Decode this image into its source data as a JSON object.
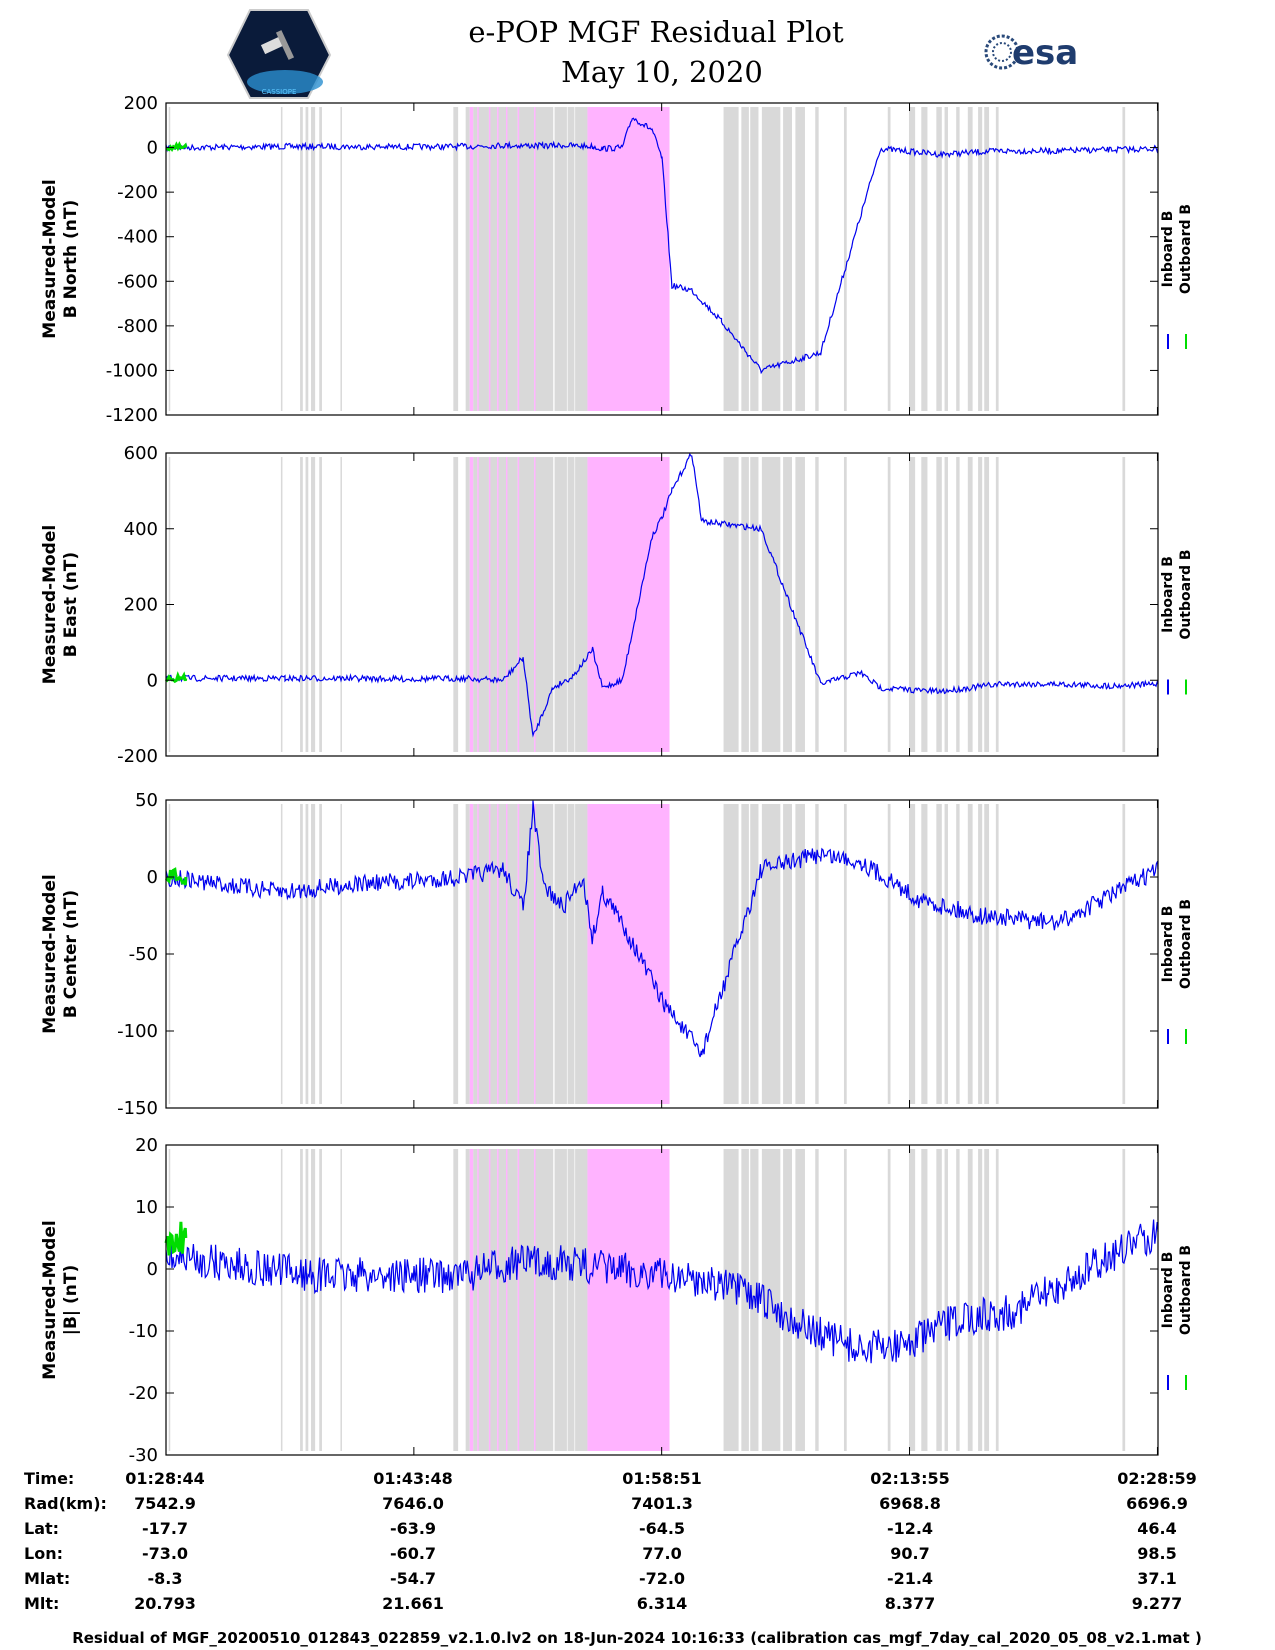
{
  "title": "e-POP MGF Residual Plot",
  "subtitle": "May 10, 2020",
  "logo_right_text": "esa",
  "logo_left_text": "CASSIOPE",
  "colors": {
    "inboard": "#0000ee",
    "outboard": "#00dd00",
    "gray_band": "#d9d9d9",
    "pink_band": "#ffb3ff"
  },
  "chart_data": [
    {
      "type": "line",
      "ylabel_line1": "Measured-Model",
      "ylabel_line2": "B North (nT)",
      "ylim": [
        -1200,
        200
      ],
      "yticks": [
        200,
        0,
        -200,
        -400,
        -600,
        -800,
        -1000,
        -1200
      ],
      "legend": [
        "Inboard B",
        "Outboard B"
      ],
      "series": [
        {
          "name": "Inboard B",
          "color": "#0000ee",
          "x": [
            0,
            6,
            12,
            18,
            24,
            30,
            34,
            38,
            40,
            43,
            44,
            46,
            47,
            49,
            50,
            51,
            53,
            56,
            60,
            66,
            72,
            78,
            84,
            90,
            95,
            100
          ],
          "values": [
            0,
            2,
            5,
            4,
            3,
            5,
            10,
            8,
            10,
            5,
            -5,
            0,
            135,
            80,
            -50,
            -620,
            -640,
            -780,
            -1000,
            -920,
            -5,
            -30,
            -15,
            -15,
            -10,
            -5
          ]
        },
        {
          "name": "Outboard B",
          "color": "#00dd00",
          "x": [
            0,
            2
          ],
          "values": [
            0,
            0
          ]
        }
      ]
    },
    {
      "type": "line",
      "ylabel_line1": "Measured-Model",
      "ylabel_line2": "B East (nT)",
      "ylim": [
        -200,
        600
      ],
      "yticks": [
        600,
        400,
        200,
        0,
        -200
      ],
      "legend": [
        "Inboard B",
        "Outboard B"
      ],
      "series": [
        {
          "name": "Inboard B",
          "color": "#0000ee",
          "x": [
            0,
            6,
            12,
            18,
            24,
            30,
            34,
            36,
            37,
            39,
            41,
            43,
            44,
            45,
            46,
            49,
            50,
            51,
            53,
            54,
            60,
            66,
            70,
            72,
            78,
            84,
            90,
            95,
            100
          ],
          "values": [
            5,
            5,
            5,
            5,
            3,
            5,
            0,
            60,
            -150,
            -20,
            10,
            80,
            -20,
            -10,
            0,
            380,
            430,
            500,
            600,
            420,
            400,
            -10,
            20,
            -20,
            -30,
            -10,
            -10,
            -15,
            -10
          ]
        },
        {
          "name": "Outboard B",
          "color": "#00dd00",
          "x": [
            0,
            2
          ],
          "values": [
            5,
            5
          ]
        }
      ]
    },
    {
      "type": "line",
      "ylabel_line1": "Measured-Model",
      "ylabel_line2": "B Center (nT)",
      "ylim": [
        -150,
        50
      ],
      "yticks": [
        50,
        0,
        -50,
        -100,
        -150
      ],
      "legend": [
        "Inboard B",
        "Outboard B"
      ],
      "series": [
        {
          "name": "Inboard B",
          "color": "#0000ee",
          "x": [
            0,
            6,
            12,
            18,
            24,
            30,
            34,
            36,
            37,
            38,
            40,
            42,
            43,
            44,
            46,
            50,
            54,
            55,
            60,
            66,
            70,
            76,
            82,
            90,
            100
          ],
          "values": [
            0,
            -5,
            -10,
            -5,
            -3,
            0,
            5,
            -20,
            45,
            -5,
            -20,
            0,
            -40,
            -10,
            -30,
            -80,
            -115,
            -95,
            5,
            15,
            10,
            -15,
            -25,
            -30,
            5
          ]
        },
        {
          "name": "Outboard B",
          "color": "#00dd00",
          "x": [
            0,
            2
          ],
          "values": [
            0,
            0
          ]
        }
      ]
    },
    {
      "type": "line",
      "ylabel_line1": "Measured-Model",
      "ylabel_line2": "|B| (nT)",
      "ylim": [
        -30,
        20
      ],
      "yticks": [
        20,
        10,
        0,
        -10,
        -20,
        -30
      ],
      "legend": [
        "Inboard B",
        "Outboard B"
      ],
      "series": [
        {
          "name": "Inboard B",
          "color": "#0000ee",
          "x": [
            0,
            5,
            10,
            15,
            20,
            25,
            30,
            35,
            40,
            45,
            50,
            55,
            60,
            65,
            70,
            75,
            80,
            85,
            90,
            95,
            100
          ],
          "values": [
            2,
            1,
            0,
            -1,
            -1,
            -1,
            -1,
            1,
            1,
            0,
            -1,
            -2,
            -5,
            -10,
            -13,
            -12,
            -8,
            -7,
            -3,
            2,
            6
          ]
        },
        {
          "name": "Outboard B",
          "color": "#00dd00",
          "x": [
            0,
            2
          ],
          "values": [
            5,
            5
          ]
        }
      ]
    }
  ],
  "shaded_intervals": {
    "gray": [
      [
        0.4,
        0.6
      ],
      [
        16.8,
        17.0
      ],
      [
        19.6,
        20.0
      ],
      [
        20.4,
        20.8
      ],
      [
        21.2,
        21.8
      ],
      [
        22.4,
        22.8
      ],
      [
        25.5,
        25.7
      ],
      [
        42.0,
        42.7
      ],
      [
        43.8,
        44.4
      ],
      [
        44.9,
        45.5
      ],
      [
        45.6,
        47.2
      ],
      [
        47.3,
        48.4
      ],
      [
        48.5,
        49.7
      ],
      [
        49.9,
        51.4
      ],
      [
        51.6,
        53.8
      ],
      [
        53.9,
        56.6
      ],
      [
        56.8,
        58.6
      ],
      [
        58.7,
        59.7
      ],
      [
        59.8,
        61.6
      ],
      [
        81.5,
        83.7
      ],
      [
        84.1,
        85.2
      ],
      [
        85.4,
        86.6
      ],
      [
        87.1,
        89.8
      ],
      [
        90.2,
        91.5
      ],
      [
        92.0,
        93.4
      ],
      [
        94.9,
        95.4
      ],
      [
        99.1,
        99.5
      ],
      [
        105.5,
        105.9
      ],
      [
        108.6,
        109.5
      ],
      [
        110.4,
        111.3
      ],
      [
        112.6,
        113.4
      ],
      [
        113.8,
        114.3
      ],
      [
        115.5,
        116.0
      ],
      [
        117.2,
        117.9
      ],
      [
        118.7,
        119.3
      ],
      [
        119.6,
        120.3
      ],
      [
        121.3,
        121.7
      ],
      [
        139.8,
        140.2
      ]
    ],
    "pink": [
      [
        44.4,
        44.9
      ],
      [
        45.5,
        45.6
      ],
      [
        47.2,
        47.3
      ],
      [
        48.4,
        48.5
      ],
      [
        49.7,
        49.9
      ],
      [
        51.4,
        51.6
      ],
      [
        53.8,
        53.9
      ],
      [
        61.6,
        73.6
      ]
    ]
  },
  "x_axis": {
    "range_minutes": [
      0,
      145
    ],
    "tick_minutes": [
      0,
      36.23,
      72.45,
      108.68,
      144.92
    ]
  },
  "info_table": {
    "row_labels": [
      "Time:",
      "Rad(km):",
      "Lat:",
      "Lon:",
      "Mlat:",
      "Mlt:"
    ],
    "columns": [
      [
        "01:28:44",
        "7542.9",
        "-17.7",
        "-73.0",
        "-8.3",
        "20.793"
      ],
      [
        "01:43:48",
        "7646.0",
        "-63.9",
        "-60.7",
        "-54.7",
        "21.661"
      ],
      [
        "01:58:51",
        "7401.3",
        "-64.5",
        "77.0",
        "-72.0",
        "6.314"
      ],
      [
        "02:13:55",
        "6968.8",
        "-12.4",
        "90.7",
        "-21.4",
        "8.377"
      ],
      [
        "02:28:59",
        "6696.9",
        "46.4",
        "98.5",
        "37.1",
        "9.277"
      ]
    ]
  },
  "footer": "Residual of MGF_20200510_012843_022859_v2.1.0.lv2 on 18-Jun-2024 10:16:33 (calibration cas_mgf_7day_cal_2020_05_08_v2.1.mat )"
}
